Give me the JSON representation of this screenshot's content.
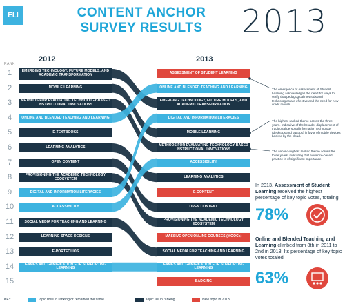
{
  "header": {
    "logo": "ELI",
    "title_line1": "CONTENT ANCHOR",
    "title_line2": "SURVEY RESULTS",
    "year": "2013"
  },
  "columns": {
    "left_year": "2012",
    "right_year": "2013",
    "rank_label": "RANK"
  },
  "ranks": [
    "1",
    "2",
    "3",
    "4",
    "5",
    "6",
    "7",
    "8",
    "9",
    "10",
    "11",
    "12",
    "13",
    "14",
    "15"
  ],
  "left_items": [
    {
      "label": "EMERGING TECHNOLOGY, FUTURE MODELS, AND ACADEMIC TRANSFORMATION",
      "style": "dark",
      "tall": true
    },
    {
      "label": "MOBILE LEARNING",
      "style": "dark"
    },
    {
      "label": "METHODS FOR EVALUATING TECHNOLOGY-BASED INSTRUCTIONAL INNOVATIONS",
      "style": "dark"
    },
    {
      "label": "ONLINE AND BLENDED TEACHING AND LEARNING",
      "style": "light"
    },
    {
      "label": "E-TEXTBOOKS",
      "style": "dark"
    },
    {
      "label": "LEARNING ANALYTICS",
      "style": "dark"
    },
    {
      "label": "OPEN CONTENT",
      "style": "dark"
    },
    {
      "label": "PROVISIONING THE ACADEMIC TECHNOLOGY ECOSYSTEM",
      "style": "dark"
    },
    {
      "label": "DIGITAL AND INFORMATION LITERACIES",
      "style": "light"
    },
    {
      "label": "ACCESSIBILITY",
      "style": "light"
    },
    {
      "label": "SOCIAL MEDIA FOR TEACHING AND LEARNING",
      "style": "dark"
    },
    {
      "label": "LEARNING SPACE DESIGNS",
      "style": "dark"
    },
    {
      "label": "E-PORTFOLIOS",
      "style": "dark"
    },
    {
      "label": "GAMES AND GAMIFICATION FOR SUPPORTING LEARNING",
      "style": "light"
    }
  ],
  "right_items": [
    {
      "label": "ASSESSMENT OF STUDENT LEARNING",
      "style": "red"
    },
    {
      "label": "ONLINE AND BLENDED TEACHING AND LEARNING",
      "style": "light"
    },
    {
      "label": "EMERGING TECHNOLOGY, FUTURE MODELS, AND ACADEMIC TRANSFORMATION",
      "style": "dark",
      "tall": true
    },
    {
      "label": "DIGITAL AND INFORMATION LITERACIES",
      "style": "light"
    },
    {
      "label": "MOBILE LEARNING",
      "style": "dark"
    },
    {
      "label": "METHODS FOR EVALUATING TECHNOLOGY-BASED INSTRUCTIONAL INNOVATIONS",
      "style": "dark"
    },
    {
      "label": "ACCESSIBILITY",
      "style": "light"
    },
    {
      "label": "LEARNING ANALYTICS",
      "style": "dark"
    },
    {
      "label": "E-CONTENT",
      "style": "red"
    },
    {
      "label": "OPEN CONTENT",
      "style": "dark"
    },
    {
      "label": "PROVISIONING THE ACADEMIC TECHNOLOGY ECOSYSTEM",
      "style": "dark"
    },
    {
      "label": "MASSIVE OPEN ONLINE COURSES (MOOCs)",
      "style": "red"
    },
    {
      "label": "SOCIAL MEDIA FOR TEACHING AND LEARNING",
      "style": "dark"
    },
    {
      "label": "GAMES AND GAMIFICATION FOR SUPPORTING LEARNING",
      "style": "light"
    },
    {
      "label": "BADGING",
      "style": "red"
    }
  ],
  "links": [
    {
      "from": 1,
      "to": 3,
      "style": "dark"
    },
    {
      "from": 2,
      "to": 5,
      "style": "dark"
    },
    {
      "from": 3,
      "to": 6,
      "style": "dark"
    },
    {
      "from": 4,
      "to": 2,
      "style": "light"
    },
    {
      "from": 6,
      "to": 8,
      "style": "dark"
    },
    {
      "from": 7,
      "to": 10,
      "style": "dark"
    },
    {
      "from": 8,
      "to": 11,
      "style": "dark"
    },
    {
      "from": 9,
      "to": 4,
      "style": "light"
    },
    {
      "from": 10,
      "to": 7,
      "style": "light"
    },
    {
      "from": 11,
      "to": 13,
      "style": "dark"
    },
    {
      "from": 14,
      "to": 14,
      "style": "light"
    }
  ],
  "notes": [
    "The emergence of Assessment of Student Learning acknowledges the need for ways to verify that pedagogical methods and technologies are effective and the need for new credit models.",
    "The highest-ranked theme across the three years. Indicative of the broader displacement of traditional personal information technology (desktops and laptops) in favor of mobile devices backed by the cloud.",
    "The second-highest ranked theme across the three years, indicating that evidence-based practice is of significant importance."
  ],
  "callout1": {
    "pre": "In 2013, ",
    "bold": "Assessment of Student Learning",
    "post": " received the highest percentage of key topic votes, totaling",
    "pct": "78%"
  },
  "callout2": {
    "bold": "Online and Blended Teaching and Learning",
    "post": " climbed from 8th in 2011 to 2nd in 2013. Its percentage of key topic votes totaled",
    "pct": "63%"
  },
  "legend": {
    "key": "KEY",
    "rose": "Topic rose in ranking or remained the same",
    "fell": "Topic fell in ranking",
    "new": "New topic in 2013"
  },
  "colors": {
    "dark": "#1c3446",
    "light": "#3db3e0",
    "red": "#e0473d",
    "title": "#1fa6d8"
  }
}
